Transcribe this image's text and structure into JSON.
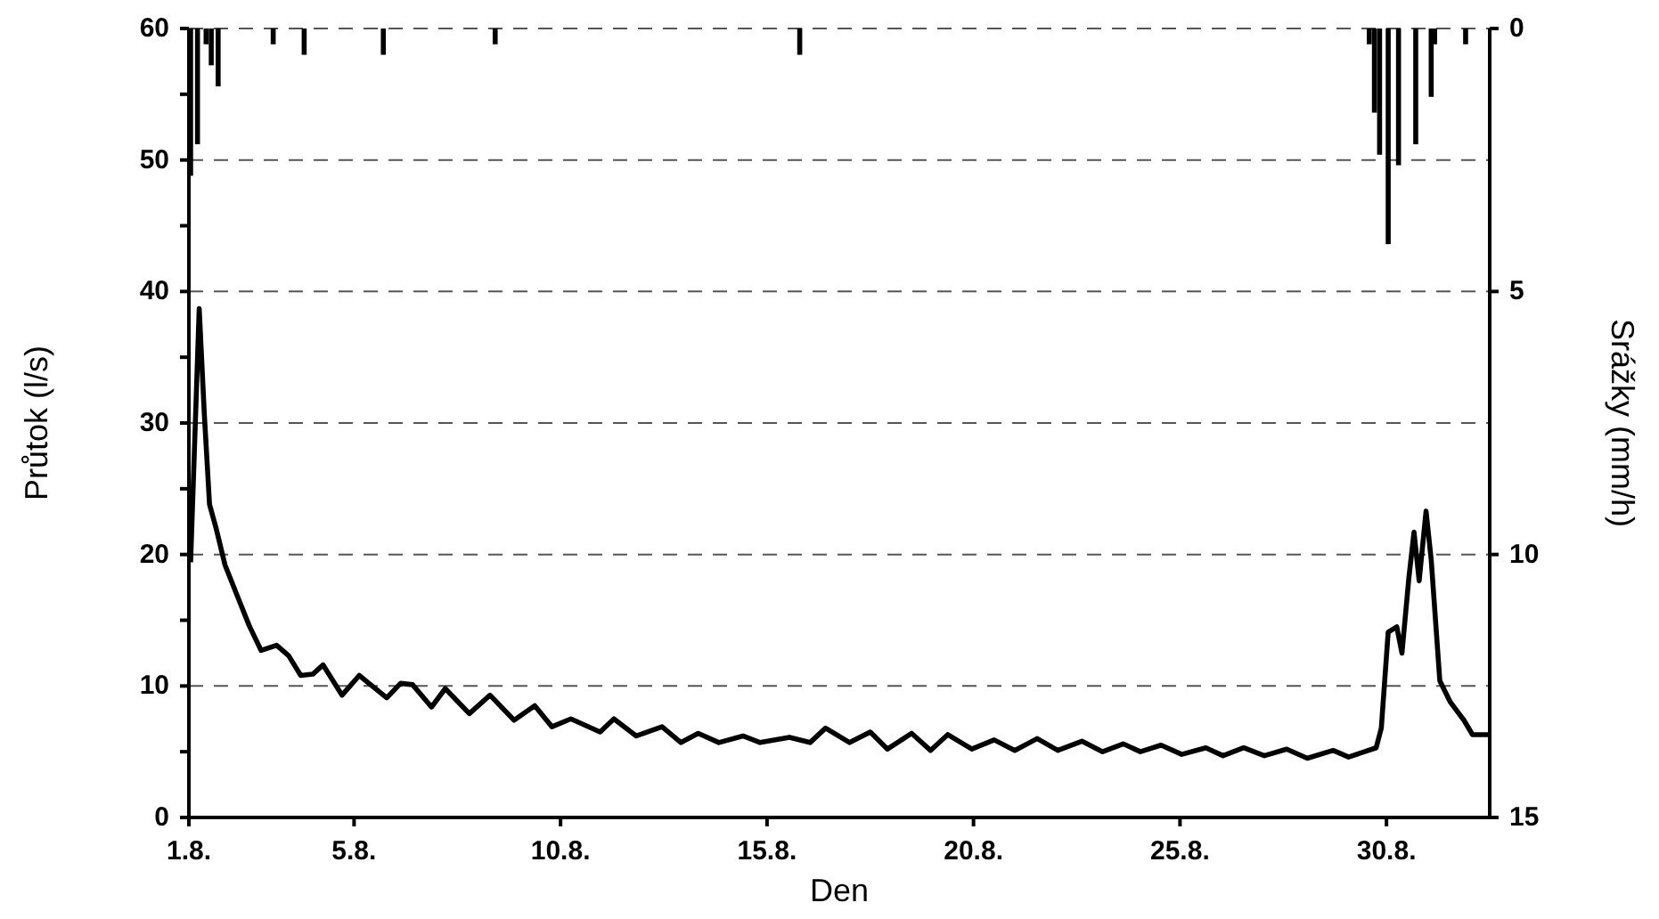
{
  "chart_data": {
    "type": "line",
    "xlabel": "Den",
    "ylabel": "Průtok (l/s)",
    "y2label": "Srážky (mm/h)",
    "xlim": [
      "--08-01",
      "--09-01T12:00"
    ],
    "xticks": [
      {
        "value": "--08-01",
        "label": "1.8."
      },
      {
        "value": "--08-05",
        "label": "5.8."
      },
      {
        "value": "--08-10",
        "label": "10.8."
      },
      {
        "value": "--08-15",
        "label": "15.8."
      },
      {
        "value": "--08-20",
        "label": "20.8."
      },
      {
        "value": "--08-25",
        "label": "25.8."
      },
      {
        "value": "--08-30",
        "label": "30.8."
      }
    ],
    "ylim": [
      0,
      60
    ],
    "yticks": [
      0,
      {
        "value": 5,
        "label": null
      },
      10,
      {
        "value": 15,
        "label": null
      },
      20,
      {
        "value": 25,
        "label": null
      },
      30,
      {
        "value": 35,
        "label": null
      },
      40,
      {
        "value": 45,
        "label": null
      },
      50,
      {
        "value": 55,
        "label": null
      },
      60
    ],
    "y2lim": [
      15,
      0
    ],
    "y2ticks": [
      0,
      5,
      10,
      15
    ],
    "grid": "y",
    "marker": "none",
    "line_style": "solid",
    "series": [
      {
        "color": "#000000",
        "x": [
          "--08-01T01:00",
          "--08-01T06:00",
          "--08-01T09:00",
          "--08-01T12:00",
          "--08-01T16:00",
          "--08-01T21:00",
          "--08-02T04:00",
          "--08-02T11:00",
          "--08-02T18:00",
          "--08-03T03:00",
          "--08-03T10:00",
          "--08-03T17:00",
          "--08-04T00:00",
          "--08-04T06:00",
          "--08-04T17:00",
          "--08-05T03:00",
          "--08-05T19:00",
          "--08-06T03:00",
          "--08-06T10:00",
          "--08-06T21:00",
          "--08-07T05:00",
          "--08-07T19:00",
          "--08-08T07:00",
          "--08-08T21:00",
          "--08-09T09:00",
          "--08-09T19:00",
          "--08-10T06:00",
          "--08-10T23:00",
          "--08-11T07:00",
          "--08-11T20:00",
          "--08-12T11:00",
          "--08-12T22:00",
          "--08-13T08:00",
          "--08-13T20:00",
          "--08-14T10:00",
          "--08-14T20:00",
          "--08-15T13:00",
          "--08-16T01:00",
          "--08-16T10:00",
          "--08-17T00:00",
          "--08-17T12:00",
          "--08-17T22:00",
          "--08-18T12:00",
          "--08-18T23:00",
          "--08-19T09:00",
          "--08-19T23:00",
          "--08-20T12:00",
          "--08-21T00:00",
          "--08-21T13:00",
          "--08-22T01:00",
          "--08-22T15:00",
          "--08-23T03:00",
          "--08-23T15:00",
          "--08-24T01:00",
          "--08-24T13:00",
          "--08-25T01:00",
          "--08-25T15:00",
          "--08-26T01:00",
          "--08-26T13:00",
          "--08-27T01:00",
          "--08-27T14:00",
          "--08-28T02:00",
          "--08-28T17:00",
          "--08-29T02:00",
          "--08-29T18:00",
          "--08-29T21:00",
          "--08-30T01:00",
          "--08-30T06:00",
          "--08-30T09:00",
          "--08-30T13:00",
          "--08-30T16:00",
          "--08-30T19:00",
          "--08-30T23:00",
          "--08-31T02:00",
          "--08-31T07:00",
          "--08-31T13:00",
          "--08-31T21:00",
          "--09-01T02:00",
          "--09-01T11:00"
        ],
        "values": [
          19.4,
          38.7,
          30.6,
          23.8,
          21.9,
          19.2,
          16.9,
          14.6,
          12.7,
          13.1,
          12.3,
          10.8,
          10.9,
          11.6,
          9.3,
          10.8,
          9.1,
          10.2,
          10.1,
          8.4,
          9.8,
          7.9,
          9.3,
          7.4,
          8.5,
          6.9,
          7.5,
          6.5,
          7.5,
          6.2,
          6.9,
          5.7,
          6.4,
          5.7,
          6.2,
          5.7,
          6.1,
          5.7,
          6.8,
          5.7,
          6.5,
          5.2,
          6.4,
          5.1,
          6.3,
          5.2,
          5.9,
          5.1,
          6.0,
          5.1,
          5.8,
          5.0,
          5.6,
          5.0,
          5.5,
          4.8,
          5.3,
          4.7,
          5.3,
          4.7,
          5.2,
          4.5,
          5.1,
          4.6,
          5.3,
          6.8,
          14.1,
          14.5,
          12.5,
          18.2,
          21.7,
          18.0,
          23.3,
          19.6,
          10.4,
          8.8,
          7.4,
          6.3,
          6.3
        ]
      },
      {
        "type": "bar",
        "axis": "y2",
        "color": "#000000",
        "x": [
          "--08-01T01:00",
          "--08-01T05:00",
          "--08-01T10:00",
          "--08-01T13:00",
          "--08-01T17:00",
          "--08-03T01:00",
          "--08-03T19:00",
          "--08-05T17:00",
          "--08-08T10:00",
          "--08-15T19:00",
          "--08-29T14:00",
          "--08-29T17:00",
          "--08-29T20:00",
          "--08-30T01:00",
          "--08-30T07:00",
          "--08-30T17:00",
          "--08-31T02:00",
          "--08-31T04:00",
          "--08-31T22:00"
        ],
        "values": [
          2.8,
          2.2,
          0.3,
          0.7,
          1.1,
          0.3,
          0.5,
          0.5,
          0.3,
          0.5,
          0.3,
          1.6,
          2.4,
          4.1,
          2.6,
          2.2,
          1.3,
          0.3,
          0.3
        ]
      }
    ]
  }
}
